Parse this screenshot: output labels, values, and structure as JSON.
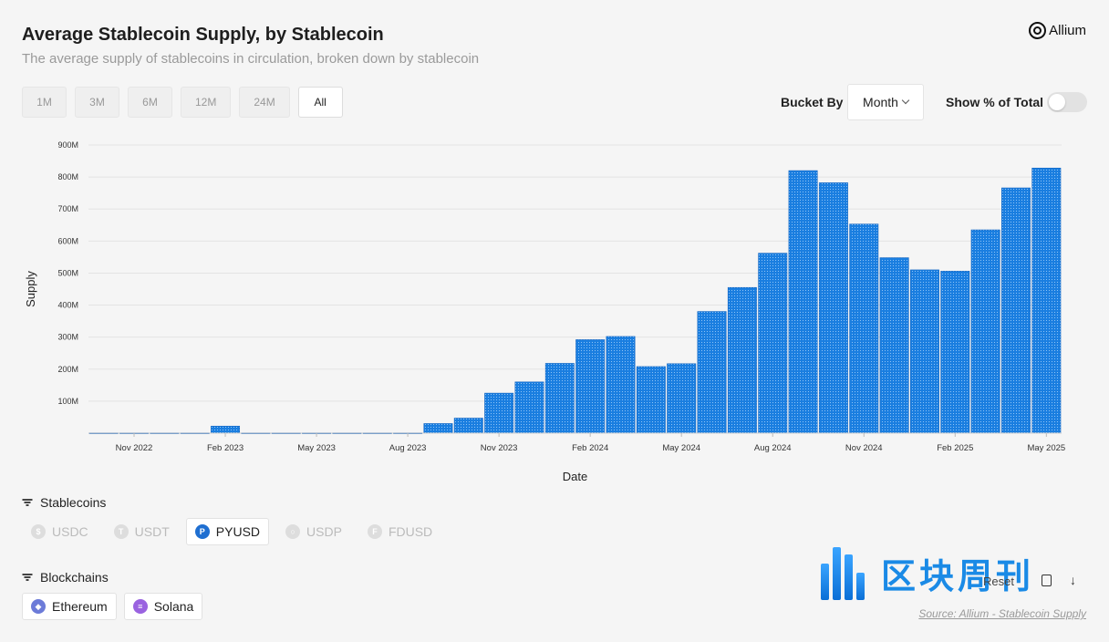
{
  "header": {
    "title": "Average Stablecoin Supply, by Stablecoin",
    "subtitle": "The average supply of stablecoins in circulation, broken down by stablecoin",
    "logo_text": "Allium"
  },
  "ranges": [
    {
      "label": "1M",
      "active": false
    },
    {
      "label": "3M",
      "active": false
    },
    {
      "label": "6M",
      "active": false
    },
    {
      "label": "12M",
      "active": false
    },
    {
      "label": "24M",
      "active": false
    },
    {
      "label": "All",
      "active": true
    }
  ],
  "controls": {
    "bucket_label": "Bucket By",
    "bucket_value": "Month",
    "pct_label": "Show % of Total",
    "pct_enabled": false
  },
  "chart_data": {
    "type": "bar",
    "title": "",
    "xlabel": "Date",
    "ylabel": "Supply",
    "ylim": [
      0,
      900000000
    ],
    "y_ticks": [
      "100M",
      "200M",
      "300M",
      "400M",
      "500M",
      "600M",
      "700M",
      "800M",
      "900M"
    ],
    "grid": true,
    "color": "#1a7ee0",
    "categories": [
      "Oct 2022",
      "Nov 2022",
      "Dec 2022",
      "Jan 2023",
      "Feb 2023",
      "Mar 2023",
      "Apr 2023",
      "May 2023",
      "Jun 2023",
      "Jul 2023",
      "Aug 2023",
      "Sep 2023",
      "Oct 2023",
      "Nov 2023",
      "Dec 2023",
      "Jan 2024",
      "Feb 2024",
      "Mar 2024",
      "Apr 2024",
      "May 2024",
      "Jun 2024",
      "Jul 2024",
      "Aug 2024",
      "Sep 2024",
      "Oct 2024",
      "Nov 2024",
      "Dec 2024",
      "Jan 2025",
      "Feb 2025",
      "Mar 2025",
      "Apr 2025",
      "May 2025"
    ],
    "x_tick_labels": [
      "Nov 2022",
      "Feb 2023",
      "May 2023",
      "Aug 2023",
      "Nov 2023",
      "Feb 2024",
      "May 2024",
      "Aug 2024",
      "Nov 2024",
      "Feb 2025",
      "May 2025"
    ],
    "series": [
      {
        "name": "PYUSD",
        "values": [
          1000000,
          1000000,
          1000000,
          1000000,
          22000000,
          1000000,
          1000000,
          1000000,
          1000000,
          1000000,
          1000000,
          30000000,
          47000000,
          125000000,
          160000000,
          218000000,
          292000000,
          302000000,
          208000000,
          217000000,
          380000000,
          455000000,
          562000000,
          820000000,
          782000000,
          653000000,
          548000000,
          510000000,
          506000000,
          635000000,
          766000000,
          828000000
        ]
      }
    ]
  },
  "filters": {
    "stablecoins_label": "Stablecoins",
    "stablecoins": [
      {
        "label": "USDC",
        "on": false,
        "glyph": "$"
      },
      {
        "label": "USDT",
        "on": false,
        "glyph": "T"
      },
      {
        "label": "PYUSD",
        "on": true,
        "glyph": "P"
      },
      {
        "label": "USDP",
        "on": false,
        "glyph": "○"
      },
      {
        "label": "FDUSD",
        "on": false,
        "glyph": "F"
      }
    ],
    "blockchains_label": "Blockchains",
    "blockchains": [
      {
        "label": "Ethereum",
        "on": true,
        "glyph": "◆"
      },
      {
        "label": "Solana",
        "on": true,
        "glyph": "≡"
      }
    ]
  },
  "footer": {
    "reset_label": "Reset",
    "download_glyph": "↓",
    "source_text": "Source: Allium - Stablecoin Supply",
    "watermark_text": "区块周刊"
  },
  "colors": {
    "bar": "#1a7ee0",
    "pyusd_icon": "#1f6fd1",
    "ethereum_icon": "#6c7bd8",
    "solana_icon": "#9a63e0",
    "watermark": "#1a8ae6"
  }
}
